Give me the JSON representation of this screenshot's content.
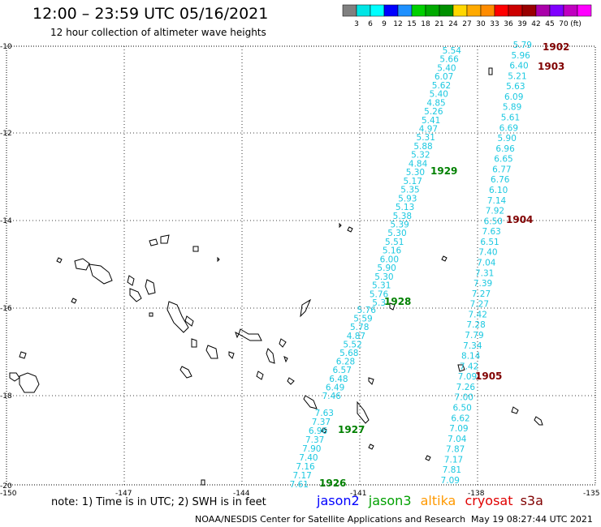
{
  "title": "12:00 – 23:59 UTC 05/16/2021",
  "subtitle": "12 hour collection of altimeter wave heights",
  "scale": {
    "colors": [
      "#808080",
      "#00e5e5",
      "#00ffff",
      "#0000ff",
      "#1e90ff",
      "#00d000",
      "#00aa00",
      "#009000",
      "#ffd700",
      "#ffaa00",
      "#ff8c00",
      "#ff0000",
      "#cc0000",
      "#990000",
      "#aa00aa",
      "#8000ff",
      "#c000c0",
      "#ff00ff"
    ],
    "labels": [
      "3",
      "6",
      "9",
      "12",
      "15",
      "18",
      "21",
      "24",
      "27",
      "30",
      "33",
      "36",
      "39",
      "42",
      "45",
      "70",
      "(ft)"
    ]
  },
  "axes": {
    "lat_labels": [
      "-10",
      "-12",
      "-14",
      "-16",
      "-18",
      "-20"
    ],
    "lon_labels": [
      "-150",
      "-147",
      "-144",
      "-141",
      "-138",
      "-135"
    ]
  },
  "tracks": [
    {
      "name": "jason3-track-1929",
      "color": "#1cc8e0",
      "label": "1929",
      "label_color": "#008000",
      "values": [
        "5.54",
        "5.66",
        "5.40",
        "6.07",
        "5.62",
        "5.40",
        "4.85",
        "5.26",
        "5.41",
        "4.97",
        "5.31",
        "5.88",
        "5.32",
        "4.84",
        "5.30",
        "5.17",
        "5.35",
        "5.93",
        "5.13",
        "5.38",
        "5.39",
        "5.30",
        "5.51",
        "5.16",
        "6.00",
        "5.90",
        "5.30",
        "5.31",
        "5.76",
        "5.3"
      ]
    },
    {
      "name": "jason3-track-1928",
      "color": "#1cc8e0",
      "label": "1928",
      "label_color": "#008000",
      "values": [
        "5.76",
        "5.59",
        "5.78",
        "4.87",
        "5.52",
        "5.68",
        "6.28",
        "6.57",
        "6.48",
        "6.49",
        "7.46"
      ]
    },
    {
      "name": "jason3-track-1927",
      "color": "#1cc8e0",
      "label": "1927",
      "label_color": "#008000",
      "values": [
        "7.63",
        "7.37",
        "6.96",
        "7.37",
        "7.90",
        "7.40",
        "7.16",
        "7.17",
        "7.61"
      ]
    },
    {
      "name": "cryosat-track-1902-1905",
      "color": "#1cc8e0",
      "values": [
        "5.79",
        "5.96",
        "6.40",
        "5.21",
        "5.63",
        "6.09",
        "5.89",
        "5.61",
        "6.69",
        "5.90",
        "6.96",
        "6.65",
        "6.77",
        "6.76",
        "6.10",
        "7.14",
        "7.92",
        "6.50",
        "7.63",
        "6.51",
        "7.40",
        "7.04",
        "7.31",
        "7.39",
        "7.27",
        "7.27",
        "7.42",
        "7.28",
        "7.79",
        "7.34",
        "8.14",
        "7.42",
        "7.09",
        "7.26",
        "7.00",
        "6.50",
        "6.62",
        "7.09",
        "7.04",
        "7.87",
        "7.17",
        "7.81",
        "7.09"
      ]
    }
  ],
  "pass_labels": [
    {
      "text": "1902",
      "color": "#800000"
    },
    {
      "text": "1903",
      "color": "#800000"
    },
    {
      "text": "1904",
      "color": "#800000"
    },
    {
      "text": "1905",
      "color": "#800000"
    },
    {
      "text": "1929",
      "color": "#008000"
    },
    {
      "text": "1928",
      "color": "#008000"
    },
    {
      "text": "1927",
      "color": "#008000"
    },
    {
      "text": "1926",
      "color": "#008000"
    }
  ],
  "footer": {
    "note": "note: 1) Time is in UTC; 2) SWH is in feet",
    "satellites": [
      {
        "name": "jason2",
        "color": "#0000ff"
      },
      {
        "name": "jason3",
        "color": "#00a000"
      },
      {
        "name": "altika",
        "color": "#ff9900"
      },
      {
        "name": "cryosat",
        "color": "#e00000"
      },
      {
        "name": "s3a",
        "color": "#800000"
      }
    ],
    "credit": "NOAA/NESDIS Center for Satellite Applications and Research",
    "timestamp": "May 19 08:27:44 UTC 2021"
  }
}
